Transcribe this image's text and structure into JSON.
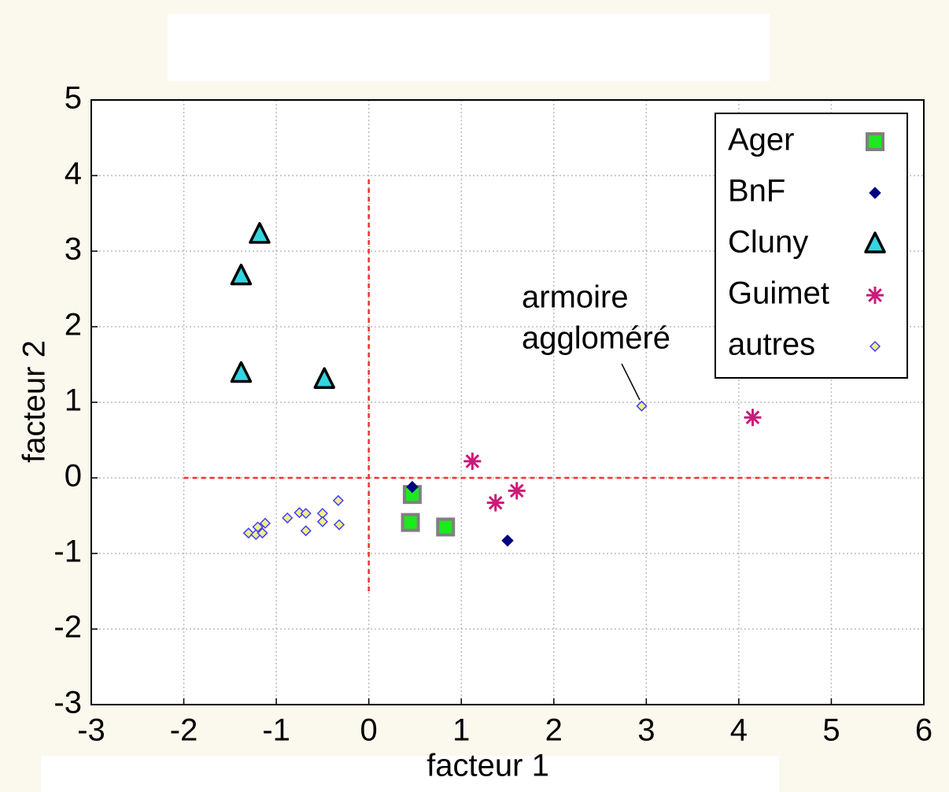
{
  "chart_data": {
    "type": "scatter",
    "x_label": "facteur 1",
    "y_label": "facteur 2",
    "xlim": [
      -3,
      6
    ],
    "ylim": [
      -3,
      5
    ],
    "xticks": [
      -3,
      -2,
      -1,
      0,
      1,
      2,
      3,
      4,
      5,
      6
    ],
    "yticks": [
      -3,
      -2,
      -1,
      0,
      1,
      2,
      3,
      4,
      5
    ],
    "grid": true,
    "legend": "upper right",
    "reference_lines": [
      {
        "orientation": "horizontal",
        "at": 0,
        "from": -2,
        "to": 5,
        "color": "#ee3333"
      },
      {
        "orientation": "vertical",
        "at": 0,
        "from": -1.5,
        "to": 4,
        "color": "#ee3333"
      }
    ],
    "annotation": [
      "armoire",
      "aggloméré"
    ],
    "series": [
      {
        "name": "Ager",
        "marker": "square",
        "color": "#1ee81e",
        "edge": "#808080",
        "x": [
          0.47,
          0.45,
          0.83
        ],
        "values": [
          -0.22,
          -0.59,
          -0.65
        ]
      },
      {
        "name": "BnF",
        "marker": "diamond",
        "color": "#000080",
        "edge": "#000080",
        "x": [
          0.47,
          1.5
        ],
        "values": [
          -0.12,
          -0.83
        ]
      },
      {
        "name": "Cluny",
        "marker": "triangle",
        "color": "#33d6e0",
        "edge": "#000000",
        "x": [
          -1.18,
          -1.38,
          -1.38,
          -0.48
        ],
        "values": [
          3.22,
          2.67,
          1.38,
          1.3
        ]
      },
      {
        "name": "Guimet",
        "marker": "asterisk",
        "color": "#cc1a7a",
        "edge": "#cc1a7a",
        "x": [
          1.12,
          1.37,
          1.6,
          4.15
        ],
        "values": [
          0.22,
          -0.33,
          -0.17,
          0.8
        ]
      },
      {
        "name": "autres",
        "marker": "small-diamond",
        "color": "#f2ee8a",
        "edge": "#4040ff",
        "x": [
          -1.3,
          -1.22,
          -1.2,
          -1.15,
          -1.12,
          -0.88,
          -0.75,
          -0.68,
          -0.68,
          -0.5,
          -0.5,
          -0.33,
          -0.32,
          2.95
        ],
        "values": [
          -0.73,
          -0.75,
          -0.65,
          -0.73,
          -0.6,
          -0.53,
          -0.46,
          -0.47,
          -0.7,
          -0.47,
          -0.58,
          -0.3,
          -0.62,
          0.95
        ]
      }
    ]
  }
}
